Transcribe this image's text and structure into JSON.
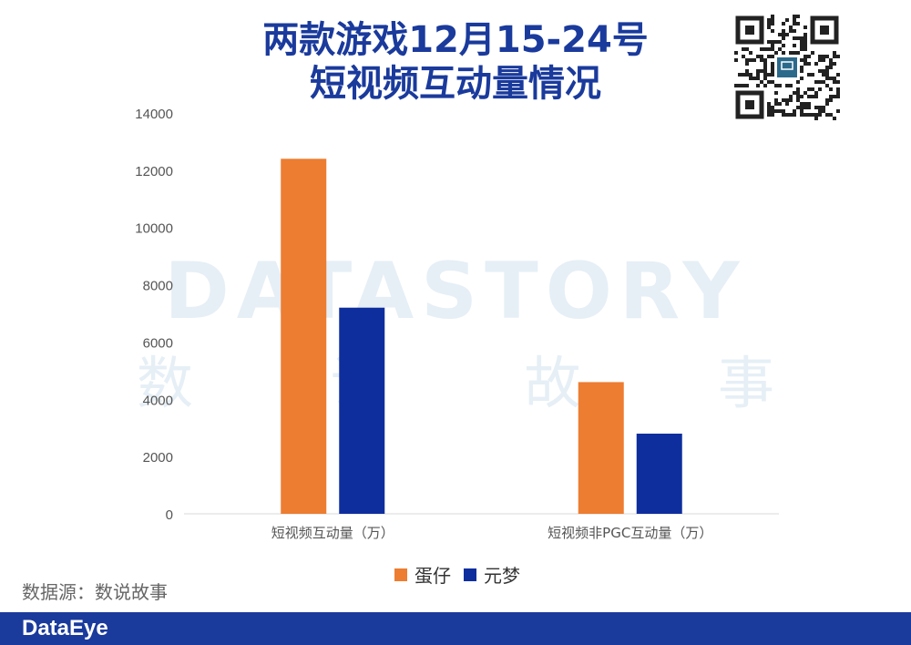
{
  "title_line1": "两款游戏12月15-24号",
  "title_line2": "短视频互动量情况",
  "watermark": {
    "en": "DATASTORY",
    "cn": [
      "数",
      "说",
      "故",
      "事"
    ]
  },
  "source": "数据源：数说故事",
  "brand": "DataEye",
  "colors": {
    "danzai": "#ED7D31",
    "yuanmeng": "#0E2E9E",
    "title": "#1A3A9C",
    "footer": "#1A3A9C"
  },
  "chart_data": {
    "type": "bar",
    "title": "两款游戏12月15-24号短视频互动量情况",
    "categories": [
      "短视频互动量（万）",
      "短视频非PGC互动量（万）"
    ],
    "series": [
      {
        "name": "蛋仔",
        "values": [
          12400,
          4600
        ]
      },
      {
        "name": "元梦",
        "values": [
          7200,
          2800
        ]
      }
    ],
    "ylim": [
      0,
      14000
    ],
    "yticks": [
      0,
      2000,
      4000,
      6000,
      8000,
      10000,
      12000,
      14000
    ],
    "legend": "bottom",
    "grid": false
  }
}
